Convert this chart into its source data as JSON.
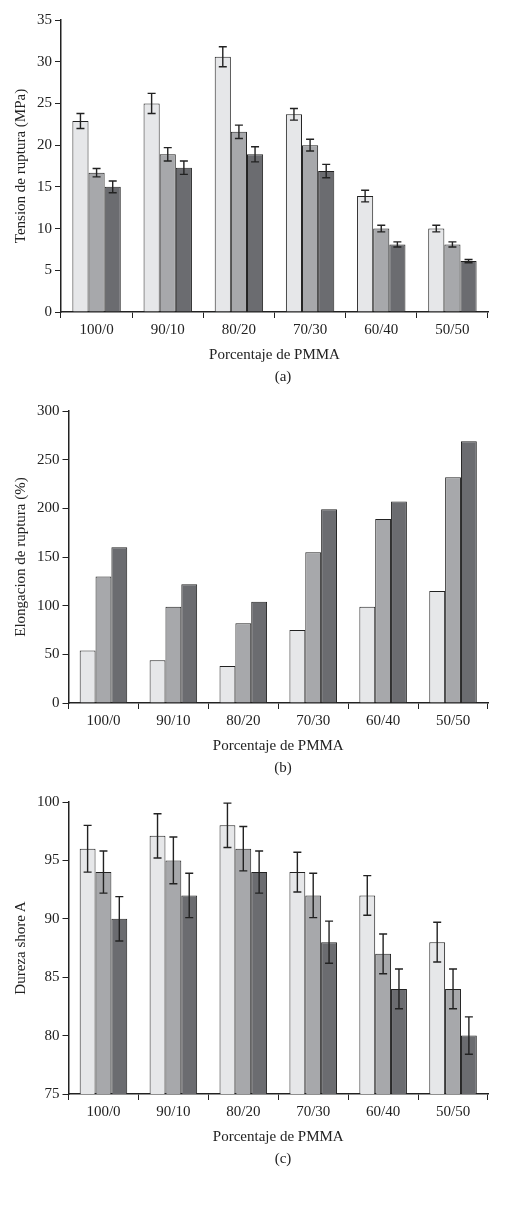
{
  "chart_data": [
    {
      "type": "bar",
      "categories": [
        "100/0",
        "90/10",
        "80/20",
        "70/30",
        "60/40",
        "50/50"
      ],
      "xlabel": "Porcentaje de PMMA",
      "ylabel": "Tension de ruptura (MPa)",
      "ylim": [
        0,
        35
      ],
      "yticks": [
        0,
        5,
        10,
        15,
        20,
        25,
        30,
        35
      ],
      "grid": false,
      "legend": false,
      "annotations": [
        "(a)"
      ],
      "series": [
        {
          "color": "#e6e7e9",
          "values": [
            22.9,
            25.0,
            30.6,
            23.7,
            13.9,
            10.0
          ],
          "errors": [
            0.9,
            1.2,
            1.2,
            0.7,
            0.7,
            0.4
          ]
        },
        {
          "color": "#a7a8ab",
          "values": [
            16.7,
            18.9,
            21.6,
            20.0,
            10.0,
            8.1
          ],
          "errors": [
            0.5,
            0.8,
            0.8,
            0.7,
            0.4,
            0.3
          ]
        },
        {
          "color": "#6b6c70",
          "values": [
            15.0,
            17.3,
            18.9,
            16.9,
            8.1,
            6.1
          ],
          "errors": [
            0.7,
            0.8,
            0.9,
            0.8,
            0.3,
            0.2
          ]
        }
      ]
    },
    {
      "type": "bar",
      "categories": [
        "100/0",
        "90/10",
        "80/20",
        "70/30",
        "60/40",
        "50/50"
      ],
      "xlabel": "Porcentaje de PMMA",
      "ylabel": "Elongacion de ruptura (%)",
      "ylim": [
        0,
        300
      ],
      "yticks": [
        0,
        50,
        100,
        150,
        200,
        250,
        300
      ],
      "grid": false,
      "legend": false,
      "annotations": [
        "(b)"
      ],
      "series": [
        {
          "color": "#e6e7e9",
          "values": [
            54,
            44,
            38,
            75,
            99,
            115
          ]
        },
        {
          "color": "#a7a8ab",
          "values": [
            130,
            99,
            82,
            155,
            189,
            232
          ]
        },
        {
          "color": "#6b6c70",
          "values": [
            160,
            122,
            104,
            199,
            207,
            269
          ]
        }
      ]
    },
    {
      "type": "bar",
      "categories": [
        "100/0",
        "90/10",
        "80/20",
        "70/30",
        "60/40",
        "50/50"
      ],
      "xlabel": "Porcentaje de PMMA",
      "ylabel": "Dureza shore A",
      "ylim": [
        75,
        100
      ],
      "yticks": [
        75,
        80,
        85,
        90,
        95,
        100
      ],
      "grid": false,
      "legend": false,
      "annotations": [
        "(c)"
      ],
      "series": [
        {
          "color": "#e6e7e9",
          "values": [
            96,
            97.1,
            98,
            94,
            92,
            88
          ],
          "errors": [
            2.0,
            1.9,
            1.9,
            1.7,
            1.7,
            1.7
          ]
        },
        {
          "color": "#a7a8ab",
          "values": [
            94,
            95,
            96,
            92,
            87,
            84
          ],
          "errors": [
            1.8,
            2.0,
            1.9,
            1.9,
            1.7,
            1.7
          ]
        },
        {
          "color": "#6b6c70",
          "values": [
            90,
            92,
            94,
            88,
            84,
            80
          ],
          "errors": [
            1.9,
            1.9,
            1.8,
            1.8,
            1.7,
            1.6
          ]
        }
      ]
    }
  ]
}
